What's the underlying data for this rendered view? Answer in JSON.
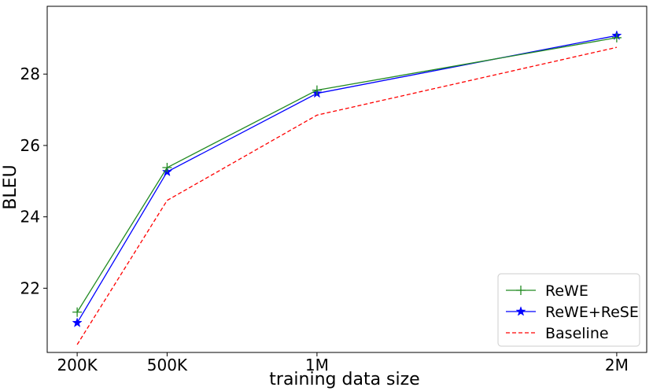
{
  "chart_data": {
    "type": "line",
    "title": "",
    "xlabel": "training data size",
    "ylabel": "BLEU",
    "x_categories": [
      "200K",
      "500K",
      "1M",
      "2M"
    ],
    "x_values": [
      200000,
      500000,
      1000000,
      2000000
    ],
    "yticks": [
      22,
      24,
      26,
      28
    ],
    "ylim": [
      20.2,
      29.9
    ],
    "grid": false,
    "legend_position": "lower-right",
    "series": [
      {
        "name": "ReWE",
        "values": [
          21.33,
          25.38,
          27.55,
          29.02
        ],
        "color": "#228B22",
        "marker": "plus",
        "linestyle": "solid"
      },
      {
        "name": "ReWE+ReSE",
        "values": [
          21.03,
          25.26,
          27.46,
          29.08
        ],
        "color": "#0000ff",
        "marker": "star",
        "linestyle": "solid"
      },
      {
        "name": "Baseline",
        "values": [
          20.42,
          24.46,
          26.85,
          28.75
        ],
        "color": "#ff0000",
        "marker": "none",
        "linestyle": "dashed"
      }
    ]
  }
}
